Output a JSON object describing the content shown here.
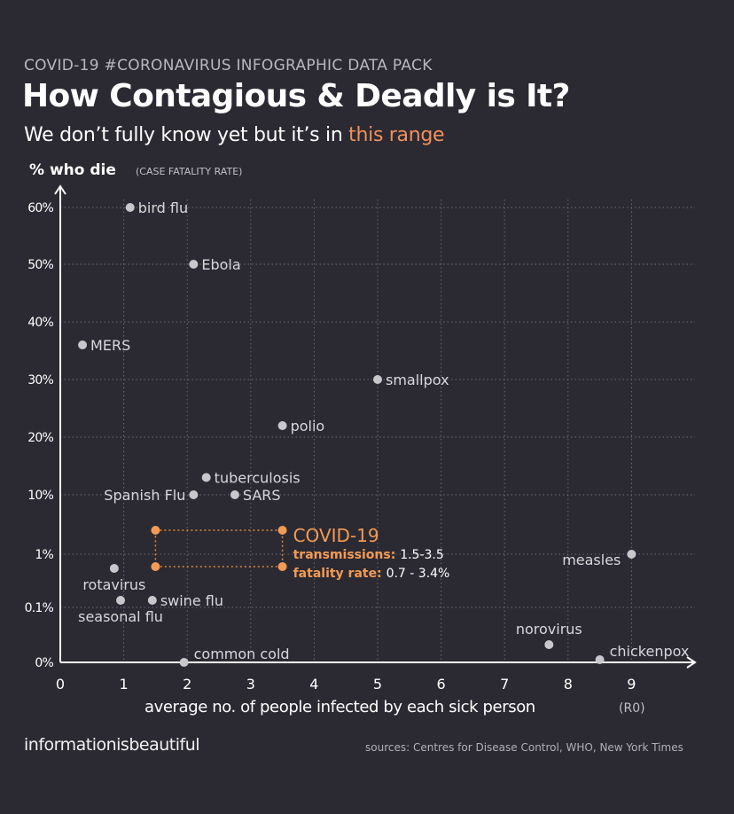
{
  "kicker": "COVID-19 #CORONAVIRUS INFOGRAPHIC DATA PACK",
  "title": "How Contagious  & Deadly is It?",
  "subtitle_prefix": "We don’t fully know yet but it’s in ",
  "subtitle_highlight": "this range",
  "brand": "informationisbeautiful",
  "sources": "sources: Centres for Disease Control, WHO, New York Times",
  "colors": {
    "background": "#2b2a32",
    "points": "#c8c8cc",
    "axis": "#ffffff",
    "grid": "#6a6a72",
    "covid": "#f39a55",
    "covid_box": "#e0893f"
  },
  "chart_data": {
    "type": "scatter",
    "xlabel": "average no. of people infected by each sick person",
    "xlabel_suffix": "(R0)",
    "ylabel": "% who die",
    "ylabel_suffix": "(CASE FATALITY RATE)",
    "x_ticks": [
      "0",
      "1",
      "2",
      "3",
      "4",
      "5",
      "6",
      "7",
      "8",
      "9"
    ],
    "y_ticks": [
      {
        "label": "0%",
        "value": 0
      },
      {
        "label": "0.1%",
        "value": 0.1
      },
      {
        "label": "1%",
        "value": 1
      },
      {
        "label": "10%",
        "value": 10
      },
      {
        "label": "20%",
        "value": 20
      },
      {
        "label": "30%",
        "value": 30
      },
      {
        "label": "40%",
        "value": 40
      },
      {
        "label": "50%",
        "value": 50
      },
      {
        "label": "60%",
        "value": 60
      }
    ],
    "xlim": [
      0,
      10
    ],
    "grid": true,
    "points": [
      {
        "name": "bird flu",
        "x": 1.1,
        "y": 60,
        "label_side": "right"
      },
      {
        "name": "Ebola",
        "x": 2.1,
        "y": 50,
        "label_side": "right"
      },
      {
        "name": "MERS",
        "x": 0.35,
        "y": 36,
        "label_side": "right"
      },
      {
        "name": "smallpox",
        "x": 5.0,
        "y": 30,
        "label_side": "right"
      },
      {
        "name": "polio",
        "x": 3.5,
        "y": 22,
        "label_side": "right"
      },
      {
        "name": "tuberculosis",
        "x": 2.3,
        "y": 13,
        "label_side": "right"
      },
      {
        "name": "Spanish Flu",
        "x": 2.1,
        "y": 10,
        "label_side": "left"
      },
      {
        "name": "SARS",
        "x": 2.75,
        "y": 10,
        "label_side": "right"
      },
      {
        "name": "measles",
        "x": 9.0,
        "y": 1,
        "label_side": "left-below"
      },
      {
        "name": "rotavirus",
        "x": 0.85,
        "y": 0.7,
        "label_side": "below"
      },
      {
        "name": "swine flu",
        "x": 1.45,
        "y": 0.1,
        "label_side": "right"
      },
      {
        "name": "seasonal flu",
        "x": 0.95,
        "y": 0.1,
        "label_side": "below"
      },
      {
        "name": "norovirus",
        "x": 7.7,
        "y": 0.05,
        "label_side": "above-left"
      },
      {
        "name": "common cold",
        "x": 1.95,
        "y": 0,
        "label_side": "right-above"
      },
      {
        "name": "chickenpox",
        "x": 8.5,
        "y": 0,
        "label_side": "right-above"
      }
    ],
    "covid": {
      "name": "COVID-19",
      "transmissions_label": "transmissions:",
      "transmissions_value": "1.5-3.5",
      "fatality_label": "fatality rate:",
      "fatality_value": "0.7 - 3.4%",
      "x_range": [
        1.5,
        3.5
      ],
      "y_range": [
        0.7,
        3.4
      ]
    }
  }
}
